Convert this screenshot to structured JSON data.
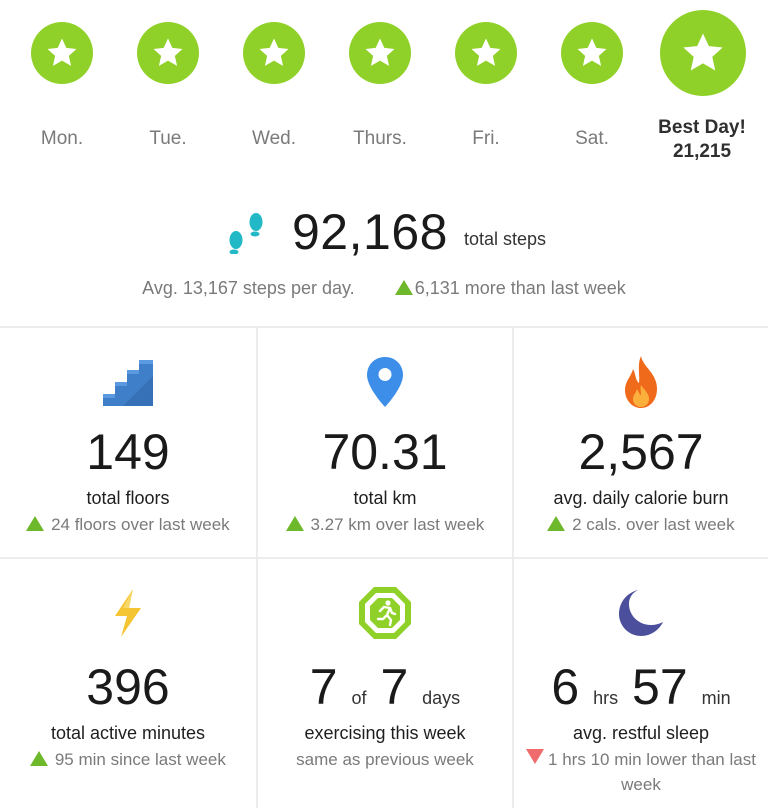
{
  "week": {
    "days": [
      {
        "label": "Mon."
      },
      {
        "label": "Tue."
      },
      {
        "label": "Wed."
      },
      {
        "label": "Thurs."
      },
      {
        "label": "Fri."
      },
      {
        "label": "Sat."
      }
    ],
    "best_day": {
      "label": "Best Day!",
      "value": "21,215"
    },
    "badge_color": "#8fd128",
    "badge_icon": "star-icon"
  },
  "steps": {
    "total": "92,168",
    "unit": "total steps",
    "avg": "Avg. 13,167 steps per day.",
    "delta": "6,131 more than last week",
    "icon": "footprints-icon",
    "icon_color": "#22b8c6"
  },
  "tiles": {
    "floors": {
      "value": "149",
      "label": "total floors",
      "delta": "24 floors over last week",
      "icon": "stairs-icon"
    },
    "distance": {
      "value": "70.31",
      "label": "total km",
      "delta": "3.27 km over last week",
      "icon": "location-pin-icon"
    },
    "calories": {
      "value": "2,567",
      "label": "avg. daily calorie burn",
      "delta": "2 cals. over last week",
      "icon": "flame-icon"
    },
    "active": {
      "value": "396",
      "label": "total active minutes",
      "delta": "95 min since last week",
      "icon": "lightning-icon"
    },
    "exercise": {
      "value_a": "7",
      "of": "of",
      "value_b": "7",
      "unit": "days",
      "label": "exercising this week",
      "delta": "same as previous week",
      "icon": "running-person-icon"
    },
    "sleep": {
      "hours": "6",
      "hours_unit": "hrs",
      "minutes": "57",
      "minutes_unit": "min",
      "label": "avg. restful sleep",
      "delta": "1 hrs 10 min lower than last week",
      "icon": "moon-icon"
    }
  },
  "colors": {
    "up": "#6db82b",
    "down": "#f06b6b",
    "muted": "#7a7a7a"
  }
}
